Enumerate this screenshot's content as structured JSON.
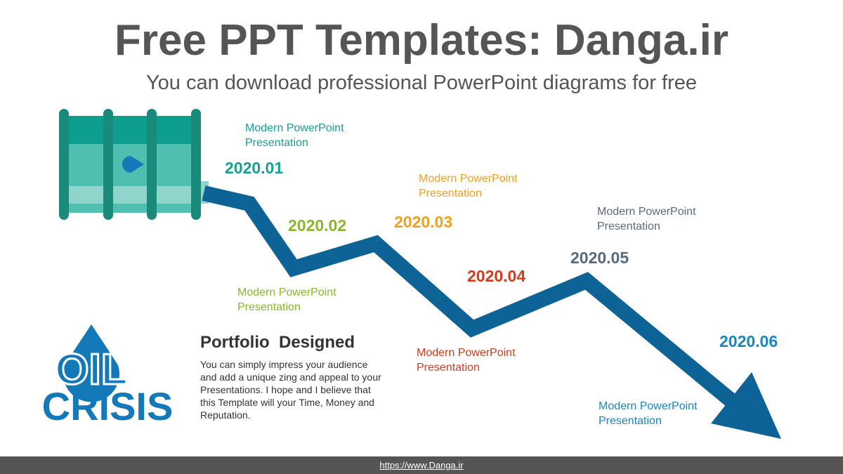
{
  "header": {
    "title": "Free PPT Templates: Danga.ir",
    "subtitle": "You can download professional PowerPoint diagrams for free"
  },
  "milestones": [
    {
      "date": "2020.01",
      "label": "Modern PowerPoint Presentation",
      "color": "#17a094"
    },
    {
      "date": "2020.02",
      "label": "Modern PowerPoint Presentation",
      "color": "#8bb82a"
    },
    {
      "date": "2020.03",
      "label": "Modern PowerPoint Presentation",
      "color": "#f0a11c"
    },
    {
      "date": "2020.04",
      "label": "Modern PowerPoint Presentation",
      "color": "#d33a1a"
    },
    {
      "date": "2020.05",
      "label": "Modern PowerPoint Presentation",
      "color": "#5a6a7e"
    },
    {
      "date": "2020.06",
      "label": "Modern PowerPoint Presentation",
      "color": "#1a86c0"
    }
  ],
  "logo": {
    "line1": "OIL",
    "line2": "CRISIS"
  },
  "portfolio": {
    "heading": "Portfolio  Designed",
    "body": "You can simply impress your audience and add a unique zing and appeal to your Presentations. I hope and I believe that this Template will your Time, Money and Reputation."
  },
  "footer": {
    "link": "https://www.Danga.ir"
  }
}
